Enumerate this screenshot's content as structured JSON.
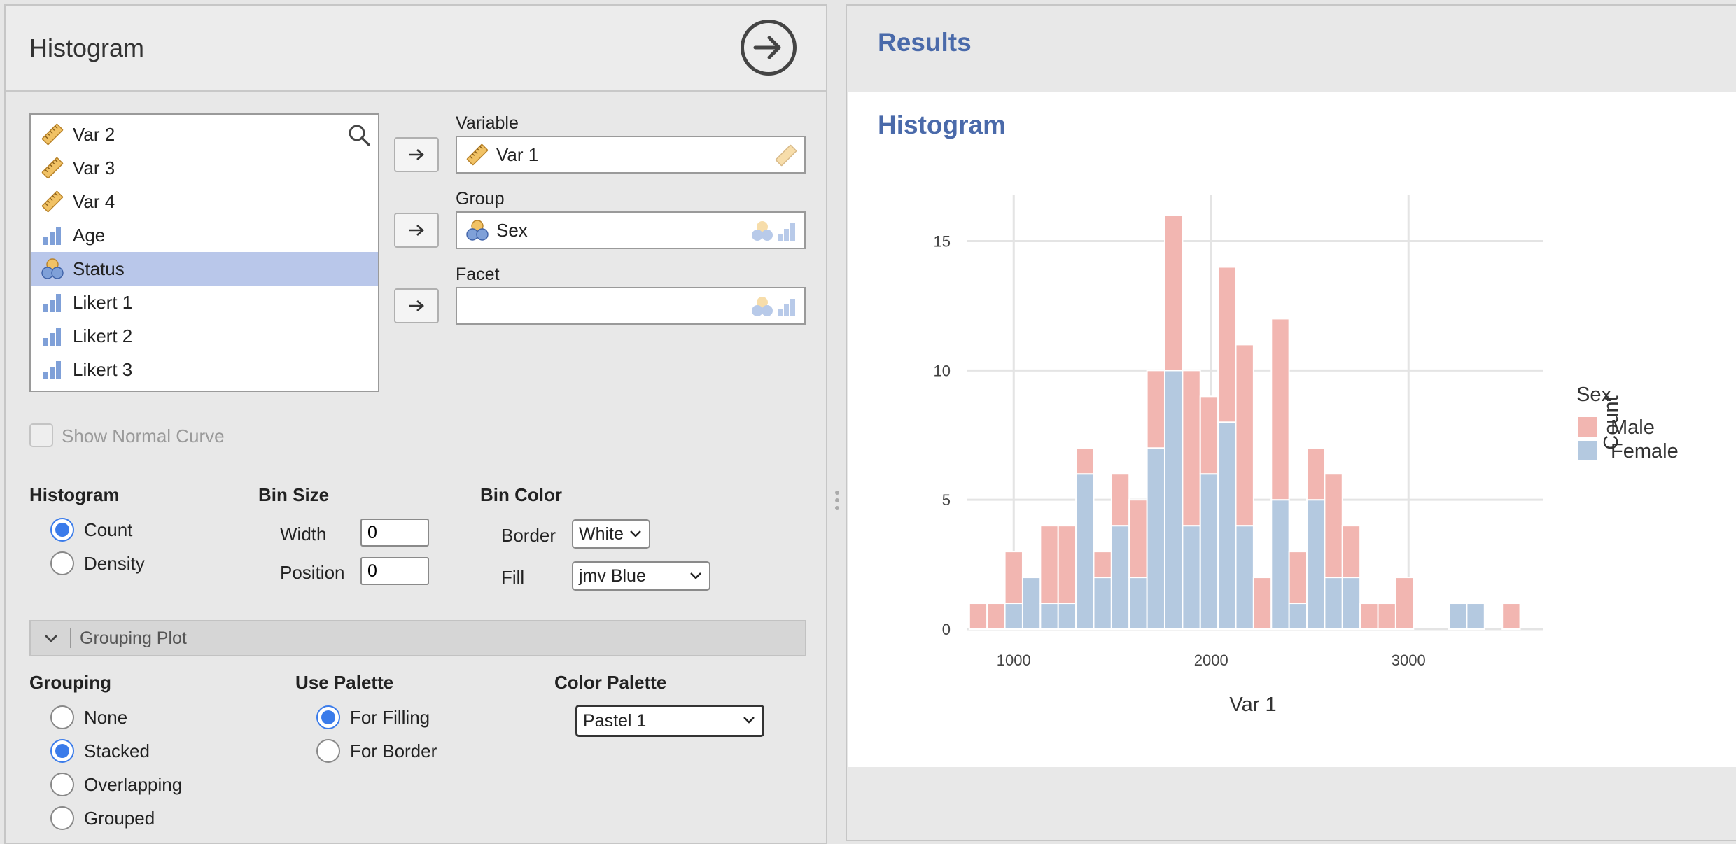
{
  "panel": {
    "title": "Histogram"
  },
  "var_list": {
    "items": [
      {
        "label": "Var 2",
        "icon": "ruler-icon",
        "selected": false
      },
      {
        "label": "Var 3",
        "icon": "ruler-icon",
        "selected": false
      },
      {
        "label": "Var 4",
        "icon": "ruler-icon",
        "selected": false
      },
      {
        "label": "Age",
        "icon": "bar-chart-icon",
        "selected": false
      },
      {
        "label": "Status",
        "icon": "nominal-icon",
        "selected": true
      },
      {
        "label": "Likert 1",
        "icon": "bar-chart-icon",
        "selected": false
      },
      {
        "label": "Likert 2",
        "icon": "bar-chart-icon",
        "selected": false
      },
      {
        "label": "Likert 3",
        "icon": "bar-chart-icon",
        "selected": false
      }
    ]
  },
  "targets": {
    "variable": {
      "label": "Variable",
      "value": "Var 1"
    },
    "group": {
      "label": "Group",
      "value": "Sex"
    },
    "facet": {
      "label": "Facet",
      "value": ""
    }
  },
  "options": {
    "normal_curve_label": "Show Normal Curve",
    "histogram": {
      "heading": "Histogram",
      "count": "Count",
      "density": "Density"
    },
    "bin_size": {
      "heading": "Bin Size",
      "width_label": "Width",
      "width_value": "0",
      "position_label": "Position",
      "position_value": "0"
    },
    "bin_color": {
      "heading": "Bin Color",
      "border_label": "Border",
      "border_value": "White",
      "fill_label": "Fill",
      "fill_value": "jmv Blue"
    }
  },
  "grouping_plot": {
    "header": "Grouping Plot",
    "grouping": {
      "heading": "Grouping",
      "none": "None",
      "stacked": "Stacked",
      "overlapping": "Overlapping",
      "grouped": "Grouped"
    },
    "use_palette": {
      "heading": "Use Palette",
      "filling": "For Filling",
      "border": "For Border"
    },
    "color_palette": {
      "heading": "Color Palette",
      "value": "Pastel 1"
    }
  },
  "results": {
    "title": "Results",
    "section_title": "Histogram"
  },
  "colors": {
    "male": "#f2b6b1",
    "female": "#b4c9e0",
    "accent": "#3a7bea",
    "heading": "#4a6aaa"
  },
  "chart_data": {
    "type": "bar",
    "stacked": true,
    "xlabel": "Var 1",
    "ylabel": "Count",
    "x_ticks": [
      1000,
      2000,
      3000
    ],
    "y_ticks": [
      0,
      5,
      10,
      15
    ],
    "xlim": [
      765,
      3680
    ],
    "ylim": [
      0,
      16.8
    ],
    "bin_width": 90,
    "legend": {
      "title": "Sex",
      "position": "right"
    },
    "bin_centers": [
      820,
      910,
      1000,
      1090,
      1180,
      1270,
      1360,
      1450,
      1540,
      1630,
      1720,
      1810,
      1900,
      1990,
      2080,
      2170,
      2260,
      2350,
      2440,
      2530,
      2620,
      2710,
      2800,
      2890,
      2980,
      3070,
      3160,
      3250,
      3340,
      3430,
      3520
    ],
    "series": [
      {
        "name": "Female",
        "values": [
          0,
          0,
          1,
          2,
          1,
          1,
          6,
          2,
          4,
          2,
          7,
          10,
          4,
          6,
          8,
          4,
          0,
          5,
          1,
          5,
          2,
          2,
          0,
          0,
          0,
          0,
          0,
          1,
          1,
          0,
          0
        ]
      },
      {
        "name": "Male",
        "values": [
          1,
          1,
          2,
          0,
          3,
          3,
          1,
          1,
          2,
          3,
          3,
          6,
          6,
          3,
          6,
          7,
          2,
          7,
          2,
          2,
          4,
          2,
          1,
          1,
          2,
          0,
          0,
          0,
          0,
          0,
          1
        ]
      }
    ]
  }
}
